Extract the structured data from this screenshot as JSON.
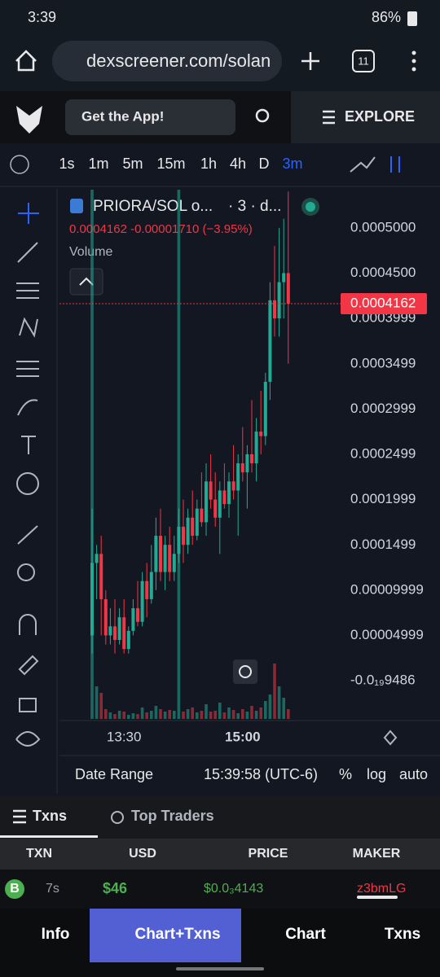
{
  "status": {
    "time": "3:39",
    "battery": "86%"
  },
  "browser": {
    "url": "dexscreener.com/solan",
    "tabs": "11"
  },
  "header": {
    "cta": "Get the App!",
    "explore": "EXPLORE"
  },
  "timeframes": [
    "1s",
    "1m",
    "5m",
    "15m",
    "1h",
    "4h",
    "D",
    "3m"
  ],
  "chart_data": {
    "type": "candlestick",
    "title": "PRIORA/SOL o...",
    "subtitle": "· 3 · d...",
    "quote": "0.0004162  -0.00001710 (−3.95%)",
    "volume_label": "Volume",
    "up_color": "#22ab94",
    "down_color": "#f23645",
    "categories": [
      null,
      null,
      null,
      null,
      null,
      null,
      null,
      "13:30",
      null,
      null,
      null,
      null,
      null,
      null,
      null,
      null,
      null,
      null,
      null,
      null,
      null,
      null,
      null,
      null,
      null,
      null,
      null,
      null,
      null,
      null,
      null,
      null,
      null,
      "15:00",
      null,
      null,
      null,
      null,
      null,
      null,
      null,
      null,
      null,
      null
    ],
    "open": [
      5e-05,
      0.00013,
      0.00014,
      9e-05,
      5e-05,
      6e-05,
      4.5e-05,
      7e-05,
      3.5e-05,
      5.5e-05,
      8e-05,
      6.5e-05,
      0.00011,
      9e-05,
      0.00012,
      0.00016,
      0.00012,
      0.00015,
      0.00012,
      0.00014,
      0.00017,
      0.00015,
      0.00018,
      0.00016,
      0.00019,
      0.000175,
      0.00022,
      0.0002,
      0.00018,
      0.00021,
      0.000195,
      0.00022,
      0.00021,
      0.00024,
      0.00023,
      0.00025,
      0.00024,
      0.000275,
      0.00027,
      0.00033,
      0.00042,
      0.0004,
      0.00044,
      0.00045
    ],
    "high": [
      0.00019,
      0.00015,
      0.00016,
      0.0001,
      8e-05,
      9e-05,
      8e-05,
      9e-05,
      6e-05,
      9e-05,
      0.00011,
      0.00012,
      0.00013,
      0.00015,
      0.00018,
      0.00019,
      0.00016,
      0.00017,
      0.00016,
      0.00019,
      0.0002,
      0.00019,
      0.00021,
      0.0002,
      0.00023,
      0.00024,
      0.00025,
      0.00023,
      0.00022,
      0.00024,
      0.00023,
      0.00026,
      0.00025,
      0.00028,
      0.00026,
      0.00031,
      0.00029,
      0.00032,
      0.00034,
      0.00044,
      0.00048,
      0.0005,
      0.00051,
      0.00054
    ],
    "low": [
      3e-05,
      9e-05,
      5e-05,
      4e-05,
      4e-05,
      3e-05,
      4e-05,
      3e-05,
      3e-05,
      5e-05,
      6e-05,
      6e-05,
      7e-05,
      8.5e-05,
      0.0001,
      0.00011,
      0.0001,
      0.00011,
      0.00011,
      0.00013,
      0.00013,
      0.00014,
      0.00015,
      0.000155,
      0.00017,
      0.00016,
      0.00019,
      0.00017,
      0.00014,
      0.00019,
      0.00018,
      0.0002,
      0.00016,
      0.00022,
      0.00019,
      0.00023,
      0.00022,
      0.00025,
      0.00026,
      0.00031,
      0.00038,
      0.00038,
      0.0004,
      0.00035
    ],
    "close": [
      0.00013,
      0.00014,
      9e-05,
      5e-05,
      6e-05,
      4.5e-05,
      7e-05,
      3.5e-05,
      5.5e-05,
      8e-05,
      6.5e-05,
      0.00011,
      9e-05,
      0.00012,
      0.00016,
      0.00012,
      0.00015,
      0.00012,
      0.00014,
      0.00017,
      0.00015,
      0.00018,
      0.00016,
      0.00019,
      0.000175,
      0.00022,
      0.0002,
      0.00018,
      0.00021,
      0.000195,
      0.00022,
      0.00021,
      0.00024,
      0.00023,
      0.00025,
      0.00024,
      0.000275,
      0.00027,
      0.00033,
      0.00042,
      0.0004,
      0.00044,
      0.00045,
      0.0004162
    ],
    "volume": [
      650,
      40,
      32,
      12,
      8,
      6,
      10,
      9,
      5,
      7,
      6,
      14,
      8,
      10,
      16,
      12,
      9,
      11,
      10,
      650,
      9,
      12,
      14,
      8,
      10,
      18,
      9,
      10,
      20,
      8,
      14,
      11,
      7,
      12,
      9,
      16,
      10,
      14,
      22,
      30,
      68,
      40,
      26,
      12
    ],
    "ylim": [
      -4.4e-05,
      0.000543
    ],
    "yticks": [
      {
        "value": 0.0005,
        "label": "0.0005000"
      },
      {
        "value": 0.00045,
        "label": "0.0004500"
      },
      0.0003999,
      0.0003499,
      0.0002999,
      0.0002499,
      0.0001999,
      0.0001499,
      9.999e-05,
      4.999e-05,
      {
        "value": -9.486e-20,
        "label": "-0.0₁₉9486"
      }
    ],
    "last_price": 0.0004162
  },
  "chart_footer": {
    "date_range": "Date Range",
    "time": "15:39:58 (UTC-6)",
    "pct": "%",
    "log": "log",
    "auto": "auto"
  },
  "tabs": {
    "txns": "Txns",
    "top_traders": "Top Traders"
  },
  "table": {
    "headers": [
      "TXN",
      "USD",
      "PRICE",
      "MAKER"
    ],
    "rows": [
      [
        "B",
        "7s",
        "$46",
        "$0.0₃4143",
        "z3bmLG"
      ]
    ]
  },
  "nav": [
    "Info",
    "Chart+Txns",
    "Chart",
    "Txns"
  ]
}
